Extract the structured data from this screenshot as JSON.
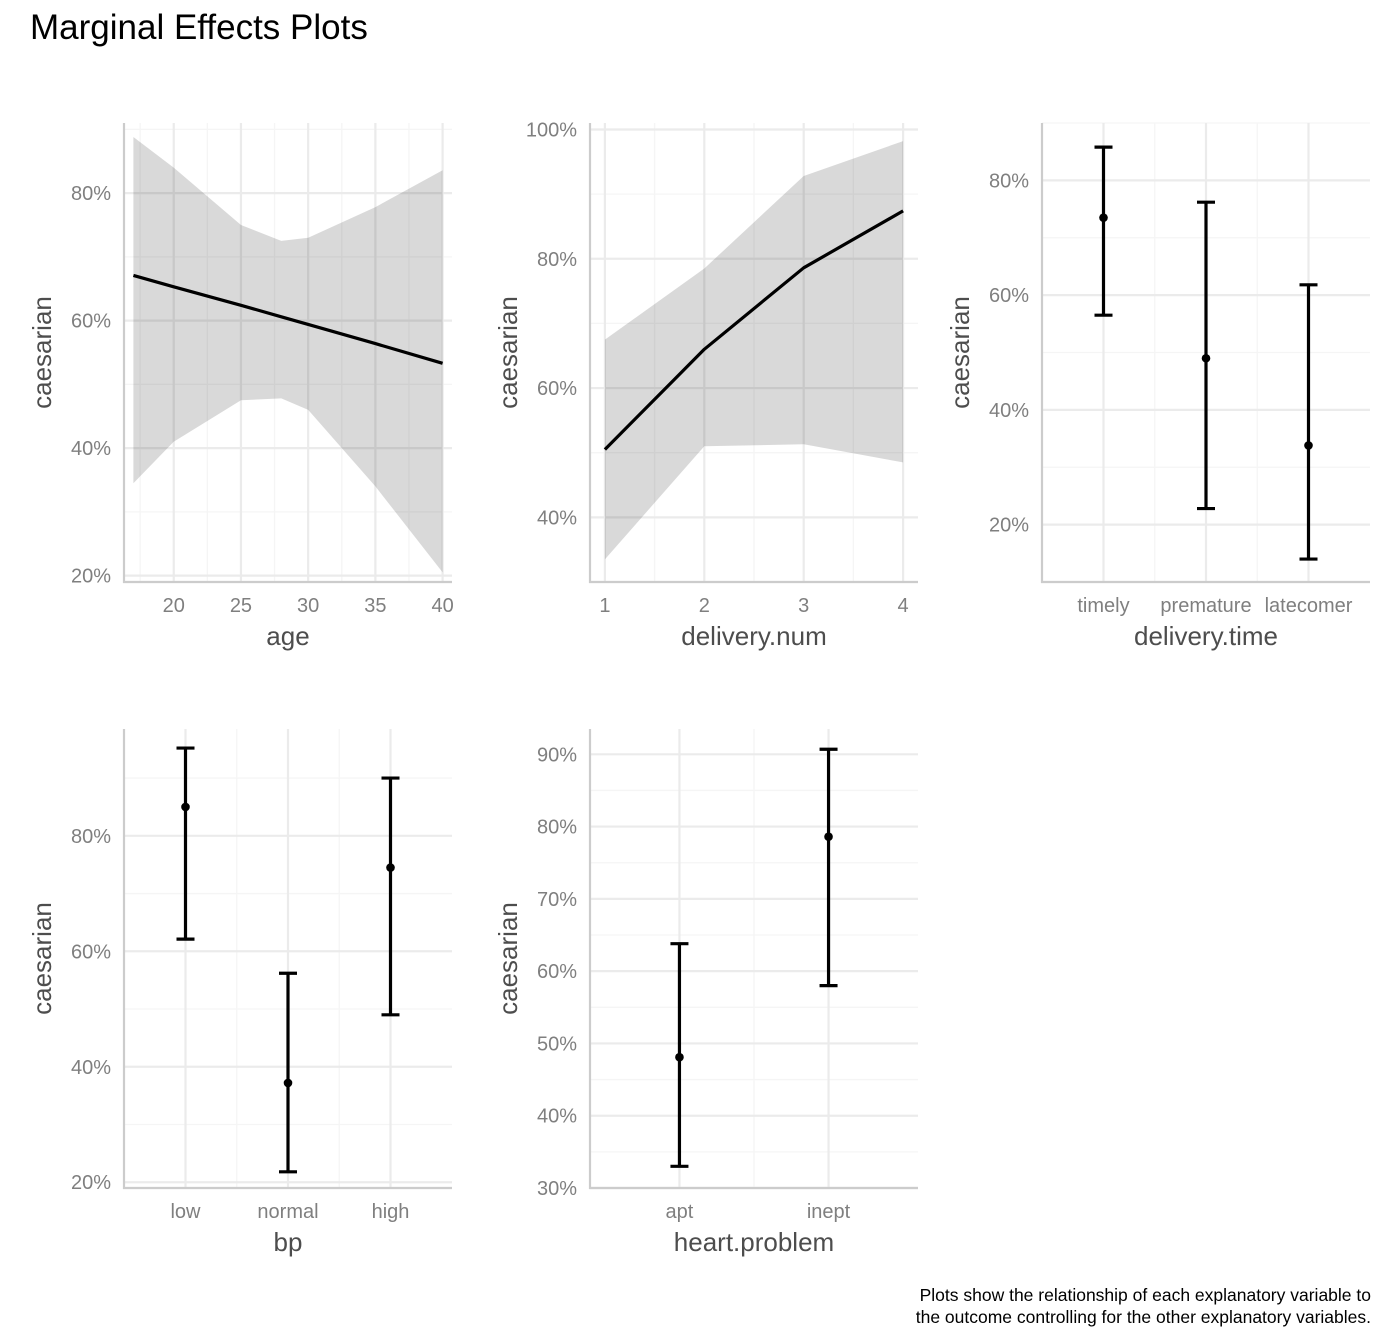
{
  "title": "Marginal Effects Plots",
  "caption": {
    "line1": "Plots show the relationship of each explanatory variable to",
    "line2": "the outcome controlling for the other explanatory variables."
  },
  "colors": {
    "line": "#000000",
    "ribbon": "#d9d9d9",
    "grid_major": "#ebebeb",
    "grid_minor": "#f5f5f5",
    "axis": "#cccccc",
    "tick_text": "#7f7f7f",
    "axis_title": "#4d4d4d"
  },
  "chart_data": [
    {
      "type": "line",
      "xlabel": "age",
      "ylabel": "caesarian",
      "xlim": [
        16.3,
        40.7
      ],
      "ylim": [
        0.19,
        0.91
      ],
      "x_ticks": [
        20,
        25,
        30,
        35,
        40
      ],
      "y_ticks": [
        0.2,
        0.4,
        0.6,
        0.8
      ],
      "y_tick_labels": [
        "20%",
        "40%",
        "60%",
        "80%"
      ],
      "grid": true,
      "x": [
        17,
        20,
        25,
        28,
        30,
        35,
        40
      ],
      "y": [
        0.671,
        0.653,
        0.624,
        0.606,
        0.594,
        0.564,
        0.533
      ],
      "ci_lower": [
        0.345,
        0.41,
        0.475,
        0.478,
        0.46,
        0.34,
        0.205
      ],
      "ci_upper": [
        0.888,
        0.84,
        0.75,
        0.725,
        0.73,
        0.778,
        0.836
      ]
    },
    {
      "type": "line",
      "xlabel": "delivery.num",
      "ylabel": "caesarian",
      "xlim": [
        0.85,
        4.15
      ],
      "ylim": [
        0.3,
        1.01
      ],
      "x_ticks": [
        1,
        2,
        3,
        4
      ],
      "y_ticks": [
        0.4,
        0.6,
        0.8,
        1.0
      ],
      "y_tick_labels": [
        "40%",
        "60%",
        "80%",
        "100%"
      ],
      "grid": true,
      "x": [
        1,
        2,
        3,
        4
      ],
      "y": [
        0.505,
        0.66,
        0.786,
        0.874
      ],
      "ci_lower": [
        0.335,
        0.51,
        0.513,
        0.485
      ],
      "ci_upper": [
        0.675,
        0.785,
        0.928,
        0.982
      ]
    },
    {
      "type": "errorbar",
      "xlabel": "delivery.time",
      "ylabel": "caesarian",
      "categories": [
        "timely",
        "premature",
        "latecomer"
      ],
      "ylim": [
        0.1,
        0.9
      ],
      "y_ticks": [
        0.2,
        0.4,
        0.6,
        0.8
      ],
      "y_tick_labels": [
        "20%",
        "40%",
        "60%",
        "80%"
      ],
      "grid": true,
      "values": [
        0.735,
        0.49,
        0.338
      ],
      "ci_lower": [
        0.565,
        0.228,
        0.14
      ],
      "ci_upper": [
        0.858,
        0.762,
        0.618
      ]
    },
    {
      "type": "errorbar",
      "xlabel": "bp",
      "ylabel": "caesarian",
      "categories": [
        "low",
        "normal",
        "high"
      ],
      "ylim": [
        0.19,
        0.985
      ],
      "y_ticks": [
        0.2,
        0.4,
        0.6,
        0.8
      ],
      "y_tick_labels": [
        "20%",
        "40%",
        "60%",
        "80%"
      ],
      "grid": true,
      "values": [
        0.85,
        0.372,
        0.745
      ],
      "ci_lower": [
        0.621,
        0.218,
        0.49
      ],
      "ci_upper": [
        0.952,
        0.562,
        0.9
      ]
    },
    {
      "type": "errorbar",
      "xlabel": "heart.problem",
      "ylabel": "caesarian",
      "categories": [
        "apt",
        "inept"
      ],
      "ylim": [
        0.3,
        0.935
      ],
      "y_ticks": [
        0.3,
        0.4,
        0.5,
        0.6,
        0.7,
        0.8,
        0.9
      ],
      "y_tick_labels": [
        "30%",
        "40%",
        "50%",
        "60%",
        "70%",
        "80%",
        "90%"
      ],
      "grid": true,
      "values": [
        0.481,
        0.786
      ],
      "ci_lower": [
        0.33,
        0.58
      ],
      "ci_upper": [
        0.638,
        0.907
      ]
    }
  ]
}
